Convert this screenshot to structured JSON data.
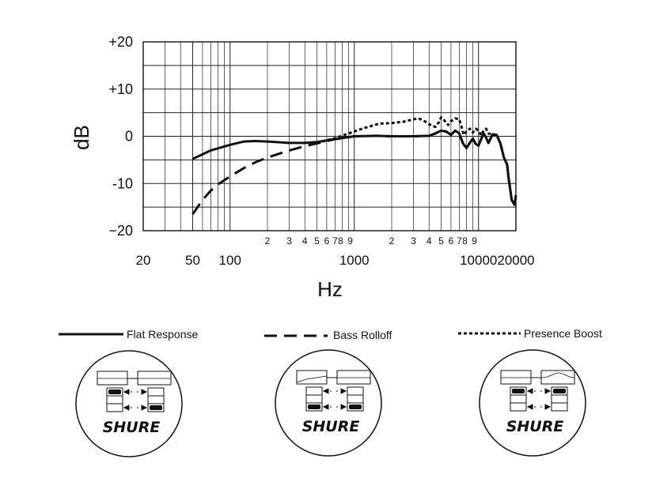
{
  "chart_data": {
    "type": "line",
    "xscale": "log",
    "xlim": [
      20,
      20000
    ],
    "ylim": [
      -20,
      20
    ],
    "xlabel": "Hz",
    "ylabel": "dB",
    "grid": true,
    "yticks": [
      {
        "value": 20,
        "label": "+20"
      },
      {
        "value": 10,
        "label": "+10"
      },
      {
        "value": 0,
        "label": "0"
      },
      {
        "value": -10,
        "label": "-10"
      },
      {
        "value": -20,
        "label": "−20"
      }
    ],
    "xticks": [
      {
        "value": 20,
        "label": "20"
      },
      {
        "value": 50,
        "label": "50"
      },
      {
        "value": 100,
        "label": "100"
      },
      {
        "value": 1000,
        "label": "1000"
      },
      {
        "value": 10000,
        "label": "10000"
      },
      {
        "value": 20000,
        "label": "20000"
      }
    ],
    "minor_ticks": [
      {
        "value": 200,
        "label": "2"
      },
      {
        "value": 300,
        "label": "3"
      },
      {
        "value": 400,
        "label": "4"
      },
      {
        "value": 500,
        "label": "5"
      },
      {
        "value": 600,
        "label": "6"
      },
      {
        "value": 700,
        "label": "7"
      },
      {
        "value": 800,
        "label": "8"
      },
      {
        "value": 900,
        "label": "9"
      },
      {
        "value": 2000,
        "label": "2"
      },
      {
        "value": 3000,
        "label": "3"
      },
      {
        "value": 4000,
        "label": "4"
      },
      {
        "value": 5000,
        "label": "5"
      },
      {
        "value": 6000,
        "label": "6"
      },
      {
        "value": 7000,
        "label": "7"
      },
      {
        "value": 8000,
        "label": "8"
      },
      {
        "value": 9000,
        "label": "9"
      }
    ],
    "series": [
      {
        "name": "Flat Response",
        "style": "solid",
        "points": [
          [
            50,
            -4.8
          ],
          [
            70,
            -3
          ],
          [
            100,
            -1.8
          ],
          [
            130,
            -1.1
          ],
          [
            160,
            -1
          ],
          [
            200,
            -1.1
          ],
          [
            300,
            -1.4
          ],
          [
            400,
            -1.4
          ],
          [
            500,
            -1.2
          ],
          [
            700,
            -0.6
          ],
          [
            1000,
            0
          ],
          [
            1500,
            0.1
          ],
          [
            2000,
            0
          ],
          [
            3000,
            0
          ],
          [
            4000,
            0.1
          ],
          [
            4500,
            0.6
          ],
          [
            5000,
            1.2
          ],
          [
            5500,
            1
          ],
          [
            6000,
            0.3
          ],
          [
            6500,
            1.2
          ],
          [
            7000,
            0.6
          ],
          [
            7500,
            -1.5
          ],
          [
            8000,
            -2.5
          ],
          [
            8500,
            -1.4
          ],
          [
            9000,
            -0.5
          ],
          [
            9500,
            -1.6
          ],
          [
            10000,
            -2
          ],
          [
            10500,
            -0.6
          ],
          [
            11000,
            0.6
          ],
          [
            11500,
            -0.3
          ],
          [
            12000,
            -1.4
          ],
          [
            13000,
            0.4
          ],
          [
            14000,
            0.3
          ],
          [
            15000,
            -1.5
          ],
          [
            16000,
            -4.5
          ],
          [
            17000,
            -6
          ],
          [
            17500,
            -9
          ],
          [
            18500,
            -13.5
          ],
          [
            19500,
            -14.5
          ],
          [
            20000,
            -12.5
          ]
        ]
      },
      {
        "name": "Bass Rolloff",
        "style": "dashed",
        "points": [
          [
            50,
            -16.5
          ],
          [
            60,
            -13.5
          ],
          [
            70,
            -11.5
          ],
          [
            80,
            -10.2
          ],
          [
            100,
            -8.5
          ],
          [
            130,
            -6.7
          ],
          [
            160,
            -5.5
          ],
          [
            200,
            -4.5
          ],
          [
            300,
            -3
          ],
          [
            400,
            -2.1
          ],
          [
            500,
            -1.5
          ],
          [
            700,
            -0.6
          ],
          [
            1000,
            0
          ],
          [
            1500,
            0.1
          ],
          [
            2000,
            0
          ],
          [
            3000,
            0
          ],
          [
            4000,
            0.1
          ],
          [
            4500,
            0.6
          ],
          [
            5000,
            1.2
          ],
          [
            5500,
            1
          ],
          [
            6000,
            0.3
          ],
          [
            6500,
            1.2
          ],
          [
            7000,
            0.6
          ],
          [
            7500,
            -1.5
          ],
          [
            8000,
            -2.5
          ],
          [
            8500,
            -1.4
          ],
          [
            9000,
            -0.5
          ],
          [
            9500,
            -1.6
          ],
          [
            10000,
            -2
          ],
          [
            10500,
            -0.6
          ],
          [
            11000,
            0.6
          ],
          [
            11500,
            -0.3
          ],
          [
            12000,
            -1.4
          ],
          [
            13000,
            0.4
          ],
          [
            14000,
            0.3
          ],
          [
            15000,
            -1.5
          ],
          [
            16000,
            -4.5
          ],
          [
            17000,
            -6
          ],
          [
            17500,
            -9
          ],
          [
            18500,
            -13.5
          ],
          [
            19500,
            -14.5
          ],
          [
            20000,
            -12.5
          ]
        ]
      },
      {
        "name": "Presence Boost",
        "style": "dotted",
        "points": [
          [
            500,
            -1.4
          ],
          [
            700,
            -0.4
          ],
          [
            900,
            0.6
          ],
          [
            1100,
            1.4
          ],
          [
            1300,
            2
          ],
          [
            1600,
            2.7
          ],
          [
            2000,
            2.8
          ],
          [
            2500,
            3.1
          ],
          [
            3000,
            3.6
          ],
          [
            3300,
            3.8
          ],
          [
            3800,
            3
          ],
          [
            4200,
            2.2
          ],
          [
            4500,
            2
          ],
          [
            4800,
            3
          ],
          [
            5000,
            4
          ],
          [
            5300,
            3.4
          ],
          [
            5700,
            2.4
          ],
          [
            6000,
            3.2
          ],
          [
            6500,
            3.8
          ],
          [
            7000,
            3.6
          ],
          [
            7300,
            2
          ],
          [
            7600,
            0.3
          ],
          [
            8000,
            1
          ],
          [
            8500,
            1.6
          ],
          [
            9000,
            0.8
          ],
          [
            9500,
            1.6
          ],
          [
            10000,
            1.2
          ],
          [
            10500,
            0.2
          ],
          [
            11000,
            1.2
          ],
          [
            11500,
            1.6
          ],
          [
            12000,
            0.6
          ],
          [
            13000,
            0.4
          ],
          [
            14000,
            0.3
          ],
          [
            15000,
            -1.5
          ],
          [
            16000,
            -4.5
          ],
          [
            17000,
            -6
          ],
          [
            17500,
            -9
          ],
          [
            18500,
            -13.5
          ],
          [
            19500,
            -14.5
          ],
          [
            20000,
            -12.5
          ]
        ]
      }
    ]
  },
  "legend": {
    "flat": {
      "label": "Flat Response"
    },
    "bass": {
      "label": "Bass Rolloff"
    },
    "presence": {
      "label": "Presence Boost"
    }
  },
  "badge": {
    "logo_text": "SHURE"
  }
}
